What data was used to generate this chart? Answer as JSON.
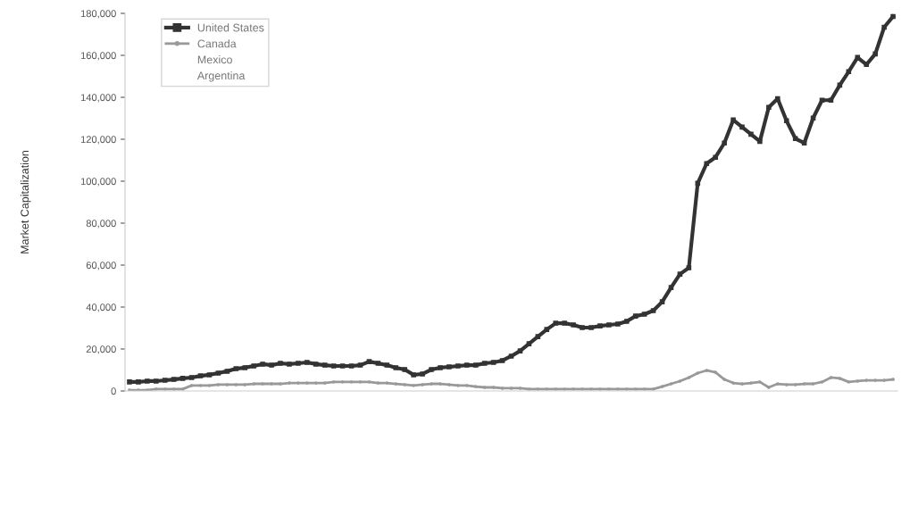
{
  "chart_data": {
    "type": "line",
    "ylabel": "Market Capitalization",
    "categories": [
      null,
      null,
      null,
      null,
      null,
      null,
      null,
      null,
      null,
      null,
      null,
      null,
      null,
      null,
      null,
      null,
      null,
      null,
      null,
      null,
      null,
      null,
      null,
      null,
      null,
      null,
      null,
      null,
      null,
      null,
      null,
      null,
      null,
      null,
      null,
      null,
      null,
      null,
      null,
      null,
      null,
      null,
      null,
      null,
      null,
      null,
      null,
      null,
      null,
      null,
      null,
      null,
      null,
      null,
      null,
      null,
      null,
      null,
      null,
      null,
      null,
      null,
      null,
      null,
      null,
      null,
      null,
      null,
      null,
      null,
      null,
      null,
      null,
      null,
      null,
      null,
      null,
      null,
      null,
      null,
      null,
      null,
      null,
      null,
      null,
      null,
      null
    ],
    "series": [
      {
        "name": "United States",
        "color": "#333333",
        "marker": "square",
        "values": [
          4300,
          4300,
          4700,
          4700,
          5100,
          5500,
          6000,
          6400,
          7200,
          7700,
          8500,
          9400,
          10600,
          11100,
          11900,
          12800,
          12300,
          13200,
          12800,
          13200,
          13600,
          12800,
          12300,
          11900,
          11900,
          11900,
          12300,
          14000,
          13200,
          12300,
          11100,
          10200,
          7700,
          8100,
          10200,
          11100,
          11500,
          11900,
          12300,
          12300,
          13200,
          13600,
          14500,
          16600,
          19100,
          22500,
          25900,
          29300,
          32300,
          32300,
          31500,
          30200,
          30200,
          31000,
          31500,
          31900,
          33200,
          35700,
          36600,
          38300,
          42500,
          49300,
          55700,
          58700,
          99000,
          108400,
          111400,
          118200,
          129200,
          125800,
          122400,
          119000,
          135200,
          139400,
          128800,
          120300,
          118200,
          130100,
          138600,
          138600,
          145800,
          152200,
          159000,
          155600,
          160700,
          173400,
          178500
        ]
      },
      {
        "name": "Canada",
        "color": "#999999",
        "marker": "circle",
        "values": [
          400,
          400,
          400,
          900,
          900,
          900,
          900,
          2600,
          2600,
          2600,
          3000,
          3000,
          3000,
          3000,
          3400,
          3400,
          3400,
          3400,
          3800,
          3800,
          3800,
          3800,
          3800,
          4300,
          4300,
          4300,
          4300,
          4300,
          3800,
          3800,
          3400,
          3000,
          2600,
          3000,
          3400,
          3400,
          3000,
          2600,
          2600,
          2100,
          1700,
          1700,
          1300,
          1300,
          1300,
          900,
          900,
          900,
          900,
          900,
          900,
          900,
          900,
          900,
          900,
          900,
          900,
          900,
          900,
          900,
          2100,
          3400,
          4700,
          6400,
          8500,
          9800,
          8900,
          5500,
          3800,
          3400,
          3800,
          4300,
          1700,
          3400,
          3000,
          3000,
          3400,
          3400,
          4300,
          6400,
          6000,
          4300,
          4700,
          5100,
          5100,
          5100,
          5500
        ]
      },
      {
        "name": "Mexico",
        "marker": "none",
        "values": [
          null,
          null,
          null,
          null,
          null,
          null,
          null,
          null,
          null,
          null,
          null,
          null,
          null,
          null,
          null,
          null,
          null,
          null,
          null,
          null,
          null,
          null,
          null,
          null,
          null,
          null,
          null,
          null,
          null,
          null,
          null,
          null,
          null,
          null,
          null,
          null,
          null,
          null,
          null,
          null,
          null,
          null,
          null,
          null,
          null,
          null,
          null,
          null,
          null,
          null,
          null,
          null,
          null,
          null,
          null,
          null,
          null,
          null,
          null,
          null,
          null,
          null,
          null,
          null,
          null,
          null,
          null,
          null,
          null,
          null,
          null,
          null,
          null,
          null,
          null,
          null,
          null,
          null,
          null,
          null,
          null,
          null,
          null,
          null,
          null,
          null,
          null
        ]
      },
      {
        "name": "Argentina",
        "marker": "none",
        "values": [
          null,
          null,
          null,
          null,
          null,
          null,
          null,
          null,
          null,
          null,
          null,
          null,
          null,
          null,
          null,
          null,
          null,
          null,
          null,
          null,
          null,
          null,
          null,
          null,
          null,
          null,
          null,
          null,
          null,
          null,
          null,
          null,
          null,
          null,
          null,
          null,
          null,
          null,
          null,
          null,
          null,
          null,
          null,
          null,
          null,
          null,
          null,
          null,
          null,
          null,
          null,
          null,
          null,
          null,
          null,
          null,
          null,
          null,
          null,
          null,
          null,
          null,
          null,
          null,
          null,
          null,
          null,
          null,
          null,
          null,
          null,
          null,
          null,
          null,
          null,
          null,
          null,
          null,
          null,
          null,
          null,
          null,
          null,
          null,
          null,
          null,
          null
        ]
      }
    ],
    "ylim": [
      0,
      180000
    ],
    "yticks": [
      0,
      {
        "value": 20000,
        "label": "20,000"
      },
      {
        "value": 40000,
        "label": "40,000"
      },
      {
        "value": 60000,
        "label": "60,000"
      },
      {
        "value": 80000,
        "label": "80,000"
      },
      {
        "value": 100000,
        "label": "100,000"
      },
      {
        "value": 120000,
        "label": "120,000"
      },
      {
        "value": 140000,
        "label": "140,000"
      },
      {
        "value": 160000,
        "label": "160,000"
      },
      {
        "value": 180000,
        "label": "180,000"
      }
    ],
    "grid": false,
    "legend": "top left",
    "tick_labels": "y"
  }
}
